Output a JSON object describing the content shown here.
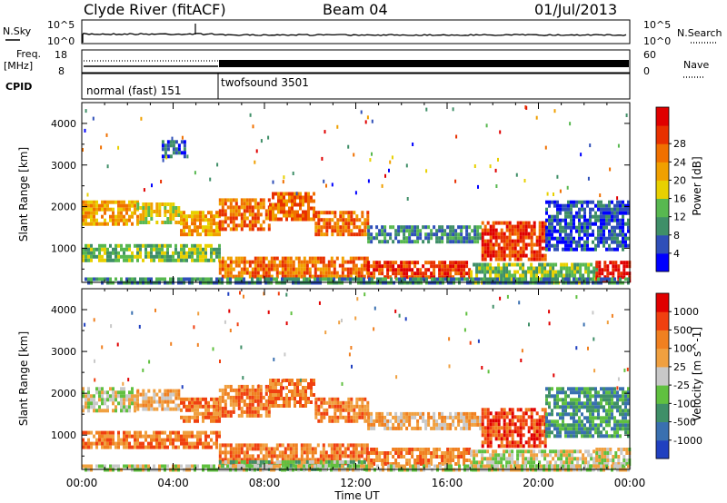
{
  "header": {
    "title": "Clyde River (fitACF)",
    "beam": "Beam 04",
    "date": "01/Jul/2013"
  },
  "strip_labels": {
    "nsky": "N.Sky",
    "nsky_ticks": [
      "10^5",
      "10^0"
    ],
    "nsearch": "N.Search",
    "nsearch_ticks": [
      "10^5",
      "10^0"
    ],
    "freq_line1": "Freq.",
    "freq_line2": "[MHz]",
    "freq_ticks": [
      "18",
      "8"
    ],
    "nave": "Nave",
    "nave_ticks": [
      "60",
      "0"
    ],
    "cpid": "CPID",
    "cpid_segments": [
      {
        "label": "normal (fast) 151",
        "start_hour": 0,
        "end_hour": 6
      },
      {
        "label": "twofsound 3501",
        "start_hour": 6,
        "end_hour": 24
      }
    ]
  },
  "chart_data": [
    {
      "type": "heatmap",
      "title": "",
      "xlabel": "",
      "ylabel": "Slant Range [km]",
      "xlim": [
        0,
        24
      ],
      "ylim": [
        180,
        4500
      ],
      "yticks": [
        "1000",
        "2000",
        "3000",
        "4000"
      ],
      "colorbar_label": "Power [dB]",
      "colorbar_ticks": [
        "4",
        "8",
        "12",
        "16",
        "20",
        "24",
        "28"
      ],
      "colorbar_colors": [
        "#0000ff",
        "#2f4fb8",
        "#3f8f68",
        "#58b850",
        "#e8d000",
        "#f0a000",
        "#f07000",
        "#e83000",
        "#e00000"
      ],
      "bands": [
        {
          "x0": 0.0,
          "x1": 2.4,
          "y0": 1550,
          "y1": 2150,
          "level": 5
        },
        {
          "x0": 2.4,
          "x1": 4.3,
          "y0": 1600,
          "y1": 2100,
          "level": 4
        },
        {
          "x0": 4.3,
          "x1": 6.0,
          "y0": 1350,
          "y1": 1900,
          "level": 5
        },
        {
          "x0": 6.0,
          "x1": 8.2,
          "y0": 1500,
          "y1": 2200,
          "level": 6
        },
        {
          "x0": 8.2,
          "x1": 10.2,
          "y0": 1700,
          "y1": 2350,
          "level": 6
        },
        {
          "x0": 10.2,
          "x1": 12.5,
          "y0": 1350,
          "y1": 1900,
          "level": 6
        },
        {
          "x0": 12.5,
          "x1": 17.5,
          "y0": 1200,
          "y1": 1550,
          "level": 2
        },
        {
          "x0": 17.5,
          "x1": 20.3,
          "y0": 700,
          "y1": 1650,
          "level": 7
        },
        {
          "x0": 20.3,
          "x1": 24.0,
          "y0": 1000,
          "y1": 2150,
          "level": 1
        },
        {
          "x0": 0.0,
          "x1": 6.0,
          "y0": 750,
          "y1": 1100,
          "level": 3
        },
        {
          "x0": 6.0,
          "x1": 12.5,
          "y0": 350,
          "y1": 800,
          "level": 6
        },
        {
          "x0": 12.5,
          "x1": 17.0,
          "y0": 280,
          "y1": 700,
          "level": 7
        },
        {
          "x0": 17.0,
          "x1": 22.5,
          "y0": 200,
          "y1": 650,
          "level": 3
        },
        {
          "x0": 22.5,
          "x1": 24.0,
          "y0": 200,
          "y1": 700,
          "level": 8
        },
        {
          "x0": 3.5,
          "x1": 4.5,
          "y0": 3200,
          "y1": 3600,
          "level": 1
        },
        {
          "x0": 0.0,
          "x1": 24.0,
          "y0": 180,
          "y1": 300,
          "level": 2
        }
      ]
    },
    {
      "type": "heatmap",
      "title": "",
      "xlabel": "Time UT",
      "ylabel": "Slant Range [km]",
      "xlim": [
        0,
        24
      ],
      "ylim": [
        180,
        4500
      ],
      "xticks": [
        "00:00",
        "04:00",
        "08:00",
        "12:00",
        "16:00",
        "20:00",
        "00:00"
      ],
      "yticks": [
        "1000",
        "2000",
        "3000",
        "4000"
      ],
      "colorbar_label": "Velocity [m s^-1]",
      "colorbar_ticks": [
        "1000",
        "500",
        "100",
        "25",
        "-25",
        "-100",
        "-500",
        "-1000"
      ],
      "colorbar_colors": [
        "#2040c0",
        "#3a70b0",
        "#3f8f68",
        "#60c040",
        "#c8c8c8",
        "#f0a040",
        "#f08020",
        "#f04010",
        "#e00000"
      ],
      "bands": [
        {
          "x0": 0.0,
          "x1": 2.4,
          "y0": 1550,
          "y1": 2150,
          "level": 4
        },
        {
          "x0": 2.4,
          "x1": 4.3,
          "y0": 1600,
          "y1": 2100,
          "level": 5
        },
        {
          "x0": 4.3,
          "x1": 6.0,
          "y0": 1350,
          "y1": 1900,
          "level": 6
        },
        {
          "x0": 6.0,
          "x1": 8.2,
          "y0": 1500,
          "y1": 2200,
          "level": 6
        },
        {
          "x0": 8.2,
          "x1": 10.2,
          "y0": 1700,
          "y1": 2350,
          "level": 6
        },
        {
          "x0": 10.2,
          "x1": 12.5,
          "y0": 1350,
          "y1": 1900,
          "level": 6
        },
        {
          "x0": 12.5,
          "x1": 17.5,
          "y0": 1200,
          "y1": 1550,
          "level": 5
        },
        {
          "x0": 17.5,
          "x1": 20.3,
          "y0": 700,
          "y1": 1650,
          "level": 7
        },
        {
          "x0": 20.3,
          "x1": 24.0,
          "y0": 1000,
          "y1": 2150,
          "level": 2
        },
        {
          "x0": 0.0,
          "x1": 6.0,
          "y0": 750,
          "y1": 1100,
          "level": 6
        },
        {
          "x0": 6.0,
          "x1": 12.5,
          "y0": 350,
          "y1": 800,
          "level": 6
        },
        {
          "x0": 12.5,
          "x1": 17.0,
          "y0": 280,
          "y1": 700,
          "level": 6
        },
        {
          "x0": 17.0,
          "x1": 22.5,
          "y0": 200,
          "y1": 650,
          "level": 4
        },
        {
          "x0": 22.5,
          "x1": 24.0,
          "y0": 200,
          "y1": 700,
          "level": 4
        },
        {
          "x0": 6.0,
          "x1": 12.5,
          "y0": 180,
          "y1": 400,
          "level": 3
        },
        {
          "x0": 0.0,
          "x1": 24.0,
          "y0": 180,
          "y1": 300,
          "level": 4
        }
      ]
    }
  ]
}
